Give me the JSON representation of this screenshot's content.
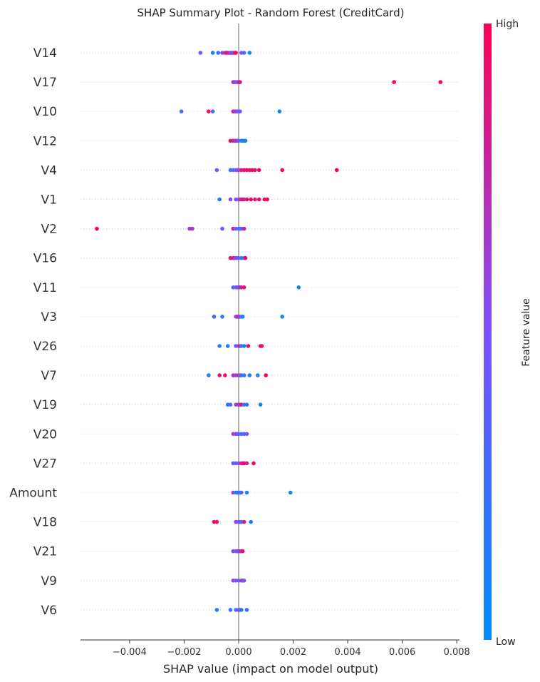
{
  "chart_data": {
    "type": "scatter",
    "title": "SHAP Summary Plot - Random Forest (CreditCard)",
    "xlabel": "SHAP value (impact on model output)",
    "xlim": [
      -0.0058,
      0.0081
    ],
    "xticks": [
      -0.004,
      -0.002,
      0.0,
      0.002,
      0.004,
      0.006,
      0.008
    ],
    "xtick_labels": [
      "−0.004",
      "−0.002",
      "0.000",
      "0.002",
      "0.004",
      "0.006",
      "0.008"
    ],
    "colorbar": {
      "label": "Feature value",
      "high": "High",
      "low": "Low",
      "high_color": "#ff0052",
      "low_color": "#008bfb"
    },
    "features": [
      {
        "name": "V14",
        "points": [
          {
            "x": -0.0014,
            "v": 0.45
          },
          {
            "x": -0.00095,
            "v": 0.1
          },
          {
            "x": -0.00075,
            "v": 0.2
          },
          {
            "x": -0.0006,
            "v": 0.6
          },
          {
            "x": -0.0005,
            "v": 0.7
          },
          {
            "x": -0.00045,
            "v": 0.8
          },
          {
            "x": -0.0004,
            "v": 0.9
          },
          {
            "x": -0.00035,
            "v": 0.75
          },
          {
            "x": -0.0003,
            "v": 0.55
          },
          {
            "x": -0.00025,
            "v": 0.7
          },
          {
            "x": -0.0002,
            "v": 0.4
          },
          {
            "x": -0.00015,
            "v": 0.85
          },
          {
            "x": -0.0001,
            "v": 0.95
          },
          {
            "x": 0.0001,
            "v": 0.5
          },
          {
            "x": 0.0002,
            "v": 0.35
          },
          {
            "x": 0.0004,
            "v": 0.05
          }
        ]
      },
      {
        "name": "V17",
        "points": [
          {
            "x": -0.0002,
            "v": 0.6
          },
          {
            "x": -0.00015,
            "v": 0.8
          },
          {
            "x": -0.0001,
            "v": 0.4
          },
          {
            "x": -5e-05,
            "v": 0.5
          },
          {
            "x": 0.0,
            "v": 0.7
          },
          {
            "x": 5e-05,
            "v": 0.9
          },
          {
            "x": 0.0057,
            "v": 1.0
          },
          {
            "x": 0.0074,
            "v": 1.0
          }
        ]
      },
      {
        "name": "V10",
        "points": [
          {
            "x": -0.0021,
            "v": 0.25
          },
          {
            "x": -0.0011,
            "v": 0.95
          },
          {
            "x": -0.00095,
            "v": 0.3
          },
          {
            "x": -0.0002,
            "v": 0.9
          },
          {
            "x": -0.00015,
            "v": 0.6
          },
          {
            "x": -0.0001,
            "v": 0.7
          },
          {
            "x": -5e-05,
            "v": 0.5
          },
          {
            "x": 0.0,
            "v": 0.55
          },
          {
            "x": 5e-05,
            "v": 0.45
          },
          {
            "x": 0.0015,
            "v": 0.05
          }
        ]
      },
      {
        "name": "V12",
        "points": [
          {
            "x": -0.0003,
            "v": 0.95
          },
          {
            "x": -0.0002,
            "v": 0.85
          },
          {
            "x": -0.00015,
            "v": 0.7
          },
          {
            "x": -0.0001,
            "v": 0.6
          },
          {
            "x": -5e-05,
            "v": 0.75
          },
          {
            "x": 0.0,
            "v": 0.3
          },
          {
            "x": 0.0001,
            "v": 0.15
          },
          {
            "x": 0.00015,
            "v": 0.1
          },
          {
            "x": 0.0002,
            "v": 0.2
          },
          {
            "x": 0.00025,
            "v": 0.1
          }
        ]
      },
      {
        "name": "V4",
        "points": [
          {
            "x": -0.0008,
            "v": 0.45
          },
          {
            "x": -0.0003,
            "v": 0.2
          },
          {
            "x": -0.0002,
            "v": 0.3
          },
          {
            "x": -0.0001,
            "v": 0.4
          },
          {
            "x": -5e-05,
            "v": 0.5
          },
          {
            "x": 0.0,
            "v": 0.6
          },
          {
            "x": 0.0001,
            "v": 0.85
          },
          {
            "x": 0.0002,
            "v": 0.9
          },
          {
            "x": 0.0003,
            "v": 0.95
          },
          {
            "x": 0.0004,
            "v": 0.9
          },
          {
            "x": 0.0005,
            "v": 0.95
          },
          {
            "x": 0.0006,
            "v": 0.9
          },
          {
            "x": 0.00075,
            "v": 0.95
          },
          {
            "x": 0.0016,
            "v": 1.0
          },
          {
            "x": 0.0036,
            "v": 1.0
          }
        ]
      },
      {
        "name": "V1",
        "points": [
          {
            "x": -0.0007,
            "v": 0.1
          },
          {
            "x": -0.0003,
            "v": 0.6
          },
          {
            "x": -0.0001,
            "v": 0.5
          },
          {
            "x": 0.0,
            "v": 0.4
          },
          {
            "x": 5e-05,
            "v": 0.7
          },
          {
            "x": 0.0001,
            "v": 0.8
          },
          {
            "x": 0.00015,
            "v": 0.9
          },
          {
            "x": 0.0002,
            "v": 0.85
          },
          {
            "x": 0.0003,
            "v": 0.9
          },
          {
            "x": 0.00045,
            "v": 0.95
          },
          {
            "x": 0.0006,
            "v": 0.9
          },
          {
            "x": 0.00075,
            "v": 0.95
          },
          {
            "x": 0.00095,
            "v": 1.0
          },
          {
            "x": 0.00105,
            "v": 1.0
          }
        ]
      },
      {
        "name": "V2",
        "points": [
          {
            "x": -0.0052,
            "v": 1.0
          },
          {
            "x": -0.0018,
            "v": 0.7
          },
          {
            "x": -0.0017,
            "v": 0.65
          },
          {
            "x": -0.0006,
            "v": 0.4
          },
          {
            "x": -0.0002,
            "v": 0.8
          },
          {
            "x": -0.0001,
            "v": 0.3
          },
          {
            "x": 0.0,
            "v": 0.25
          },
          {
            "x": 5e-05,
            "v": 0.5
          },
          {
            "x": 0.0001,
            "v": 0.2
          },
          {
            "x": 0.0002,
            "v": 0.85
          }
        ]
      },
      {
        "name": "V16",
        "points": [
          {
            "x": -0.0003,
            "v": 0.9
          },
          {
            "x": -0.0002,
            "v": 0.85
          },
          {
            "x": -0.00015,
            "v": 0.7
          },
          {
            "x": -0.0001,
            "v": 0.6
          },
          {
            "x": -5e-05,
            "v": 0.5
          },
          {
            "x": 0.0,
            "v": 0.4
          },
          {
            "x": 0.0001,
            "v": 0.2
          },
          {
            "x": 0.0002,
            "v": 0.15
          },
          {
            "x": 0.00025,
            "v": 0.95
          }
        ]
      },
      {
        "name": "V11",
        "points": [
          {
            "x": -0.0002,
            "v": 0.3
          },
          {
            "x": -0.0001,
            "v": 0.5
          },
          {
            "x": -5e-05,
            "v": 0.55
          },
          {
            "x": 0.0,
            "v": 0.45
          },
          {
            "x": 5e-05,
            "v": 0.7
          },
          {
            "x": 0.0001,
            "v": 0.8
          },
          {
            "x": 0.0002,
            "v": 0.9
          },
          {
            "x": 0.0022,
            "v": 0.05
          }
        ]
      },
      {
        "name": "V3",
        "points": [
          {
            "x": -0.0009,
            "v": 0.2
          },
          {
            "x": -0.0006,
            "v": 0.15
          },
          {
            "x": -0.0001,
            "v": 0.6
          },
          {
            "x": -5e-05,
            "v": 0.7
          },
          {
            "x": 0.0,
            "v": 0.8
          },
          {
            "x": 5e-05,
            "v": 0.5
          },
          {
            "x": 0.0001,
            "v": 0.3
          },
          {
            "x": 0.00015,
            "v": 0.1
          },
          {
            "x": 0.0016,
            "v": 0.05
          }
        ]
      },
      {
        "name": "V26",
        "points": [
          {
            "x": -0.0007,
            "v": 0.2
          },
          {
            "x": -0.0004,
            "v": 0.1
          },
          {
            "x": -0.0001,
            "v": 0.45
          },
          {
            "x": 0.0,
            "v": 0.6
          },
          {
            "x": 5e-05,
            "v": 0.8
          },
          {
            "x": 0.0001,
            "v": 0.3
          },
          {
            "x": 0.0002,
            "v": 0.05
          },
          {
            "x": 0.00035,
            "v": 0.95
          },
          {
            "x": 0.0008,
            "v": 1.0
          },
          {
            "x": 0.00085,
            "v": 0.9
          }
        ]
      },
      {
        "name": "V7",
        "points": [
          {
            "x": -0.0011,
            "v": 0.1
          },
          {
            "x": -0.0007,
            "v": 0.95
          },
          {
            "x": -0.0005,
            "v": 0.9
          },
          {
            "x": -0.0002,
            "v": 0.7
          },
          {
            "x": -0.0001,
            "v": 0.6
          },
          {
            "x": 0.0,
            "v": 0.8
          },
          {
            "x": 5e-05,
            "v": 0.5
          },
          {
            "x": 0.0001,
            "v": 0.3
          },
          {
            "x": 0.0002,
            "v": 0.2
          },
          {
            "x": 0.0004,
            "v": 0.15
          },
          {
            "x": 0.0007,
            "v": 0.1
          },
          {
            "x": 0.001,
            "v": 1.0
          }
        ]
      },
      {
        "name": "V19",
        "points": [
          {
            "x": -0.0004,
            "v": 0.1
          },
          {
            "x": -0.0003,
            "v": 0.3
          },
          {
            "x": -0.0001,
            "v": 0.6
          },
          {
            "x": 0.0,
            "v": 0.8
          },
          {
            "x": 5e-05,
            "v": 0.5
          },
          {
            "x": 0.0001,
            "v": 0.9
          },
          {
            "x": 0.0002,
            "v": 0.2
          },
          {
            "x": 0.0003,
            "v": 0.15
          },
          {
            "x": 0.0008,
            "v": 0.05
          }
        ]
      },
      {
        "name": "V20",
        "points": [
          {
            "x": -0.0002,
            "v": 0.6
          },
          {
            "x": -0.0001,
            "v": 0.7
          },
          {
            "x": -5e-05,
            "v": 0.5
          },
          {
            "x": 0.0,
            "v": 0.4
          },
          {
            "x": 0.0001,
            "v": 0.3
          },
          {
            "x": 0.0002,
            "v": 0.2
          },
          {
            "x": 0.0003,
            "v": 0.55
          }
        ]
      },
      {
        "name": "V27",
        "points": [
          {
            "x": -0.0002,
            "v": 0.4
          },
          {
            "x": -0.0001,
            "v": 0.3
          },
          {
            "x": 0.0,
            "v": 0.5
          },
          {
            "x": 0.0001,
            "v": 0.9
          },
          {
            "x": 0.00015,
            "v": 0.8
          },
          {
            "x": 0.0002,
            "v": 0.95
          },
          {
            "x": 0.0003,
            "v": 0.85
          },
          {
            "x": 0.00055,
            "v": 1.0
          }
        ]
      },
      {
        "name": "Amount",
        "points": [
          {
            "x": -0.0002,
            "v": 0.6
          },
          {
            "x": -0.0001,
            "v": 0.2
          },
          {
            "x": -5e-05,
            "v": 0.15
          },
          {
            "x": 0.0,
            "v": 0.1
          },
          {
            "x": 5e-05,
            "v": 0.3
          },
          {
            "x": 0.0001,
            "v": 0.25
          },
          {
            "x": 0.0003,
            "v": 0.1
          },
          {
            "x": 0.0019,
            "v": 0.05
          }
        ]
      },
      {
        "name": "V18",
        "points": [
          {
            "x": -0.0009,
            "v": 0.95
          },
          {
            "x": -0.0008,
            "v": 0.9
          },
          {
            "x": -0.0001,
            "v": 0.6
          },
          {
            "x": 0.0,
            "v": 0.5
          },
          {
            "x": 5e-05,
            "v": 0.4
          },
          {
            "x": 0.0001,
            "v": 0.3
          },
          {
            "x": 0.0002,
            "v": 0.85
          },
          {
            "x": 0.00045,
            "v": 0.1
          }
        ]
      },
      {
        "name": "V21",
        "points": [
          {
            "x": -0.0002,
            "v": 0.5
          },
          {
            "x": -0.0001,
            "v": 0.4
          },
          {
            "x": -5e-05,
            "v": 0.6
          },
          {
            "x": 0.0,
            "v": 0.7
          },
          {
            "x": 5e-05,
            "v": 0.3
          },
          {
            "x": 0.0001,
            "v": 0.8
          },
          {
            "x": 0.00015,
            "v": 0.9
          }
        ]
      },
      {
        "name": "V9",
        "points": [
          {
            "x": -0.0002,
            "v": 0.6
          },
          {
            "x": -0.0001,
            "v": 0.5
          },
          {
            "x": 0.0,
            "v": 0.4
          },
          {
            "x": 0.0001,
            "v": 0.7
          },
          {
            "x": 0.00015,
            "v": 0.55
          },
          {
            "x": 0.0002,
            "v": 0.45
          }
        ]
      },
      {
        "name": "V6",
        "points": [
          {
            "x": -0.0008,
            "v": 0.15
          },
          {
            "x": -0.0003,
            "v": 0.3
          },
          {
            "x": -0.0001,
            "v": 0.2
          },
          {
            "x": 0.0,
            "v": 0.6
          },
          {
            "x": 5e-05,
            "v": 0.4
          },
          {
            "x": 0.0001,
            "v": 0.1
          },
          {
            "x": 0.0003,
            "v": 0.2
          }
        ]
      }
    ]
  }
}
